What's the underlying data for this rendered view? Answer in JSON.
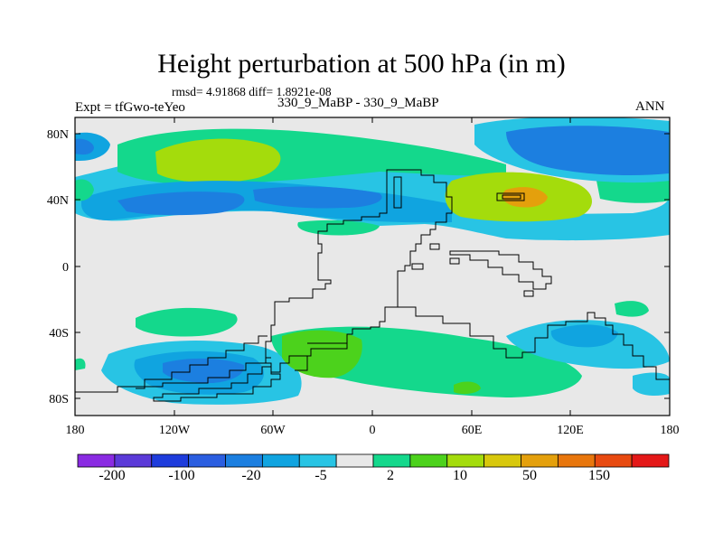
{
  "figure": {
    "title": "Height perturbation at 500 hPa (in m)",
    "stats": "rmsd= 4.91868 diff= 1.8921e-08",
    "experiment": "Expt = tfGwo-teYeo",
    "case": "330_9_MaBP - 330_9_MaBP",
    "season": "ANN"
  },
  "map": {
    "lat_ticks": [
      "80N",
      "40N",
      "0",
      "40S",
      "80S"
    ],
    "lon_ticks": [
      "180",
      "120W",
      "60W",
      "0",
      "60E",
      "120E",
      "180"
    ],
    "lat_range": [
      -90,
      90
    ],
    "lon_range": [
      -180,
      180
    ]
  },
  "colorbar": {
    "labels": [
      "-200",
      "-100",
      "-20",
      "-5",
      "2",
      "10",
      "50",
      "150"
    ],
    "colors": [
      "#8a2be2",
      "#5b3ad8",
      "#1e3cdc",
      "#2b5ee0",
      "#1c7fe0",
      "#10a4e0",
      "#28c4e4",
      "#e8e8e8",
      "#14d88c",
      "#4cd21c",
      "#a4dc0c",
      "#d8c80c",
      "#e4a00c",
      "#e8760c",
      "#e84a10",
      "#e41818"
    ]
  },
  "field_colors": {
    "neutral": "#e8e8e8",
    "lightblue": "#28c4e4",
    "cyanblue": "#10a4e0",
    "blue": "#1c7fe0",
    "dblue": "#2b5ee0",
    "mint": "#14d88c",
    "green": "#4cd21c",
    "yellowgreen": "#a4dc0c",
    "orange": "#e4a00c"
  }
}
